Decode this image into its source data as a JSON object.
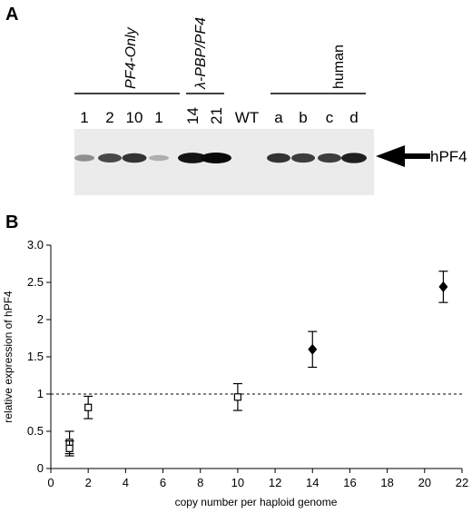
{
  "panel_a": {
    "label": "A",
    "groups": [
      {
        "name": "PF4-Only",
        "italic": true
      },
      {
        "name": "λ-PBP/PF4",
        "italic": true
      },
      {
        "name": "human",
        "italic": false
      }
    ],
    "lanes": [
      "1",
      "2",
      "10",
      "1",
      "14",
      "21",
      "WT",
      "a",
      "b",
      "c",
      "d"
    ],
    "band_intensity": [
      0.35,
      0.7,
      0.8,
      0.2,
      0.95,
      1.0,
      0.0,
      0.8,
      0.75,
      0.75,
      0.9
    ],
    "arrow_label": "hPF4"
  },
  "panel_b": {
    "label": "B"
  },
  "chart_data": {
    "type": "scatter",
    "xlabel": "copy number per haploid genome",
    "ylabel": "relative expression of hPF4",
    "xlim": [
      0,
      22
    ],
    "ylim": [
      0,
      3
    ],
    "xticks": [
      0,
      2,
      4,
      6,
      8,
      10,
      12,
      14,
      16,
      18,
      20,
      22
    ],
    "yticks": [
      0,
      0.5,
      1,
      1.5,
      2,
      2.5,
      3
    ],
    "yticklabels": [
      "0",
      "0.5",
      "1",
      "1.5",
      "2",
      "2.5",
      "3.0"
    ],
    "reference_line": {
      "y": 1.0,
      "style": "dashed"
    },
    "grid": false,
    "series": [
      {
        "marker": "open-square",
        "points": [
          {
            "x": 1,
            "y": 0.35,
            "err": 0.15
          },
          {
            "x": 1,
            "y": 0.27,
            "err": 0.1
          },
          {
            "x": 2,
            "y": 0.82,
            "err": 0.15
          },
          {
            "x": 10,
            "y": 0.96,
            "err": 0.18
          }
        ]
      },
      {
        "marker": "filled-diamond",
        "points": [
          {
            "x": 14,
            "y": 1.6,
            "err": 0.24
          },
          {
            "x": 21,
            "y": 2.44,
            "err": 0.21
          }
        ]
      }
    ]
  }
}
